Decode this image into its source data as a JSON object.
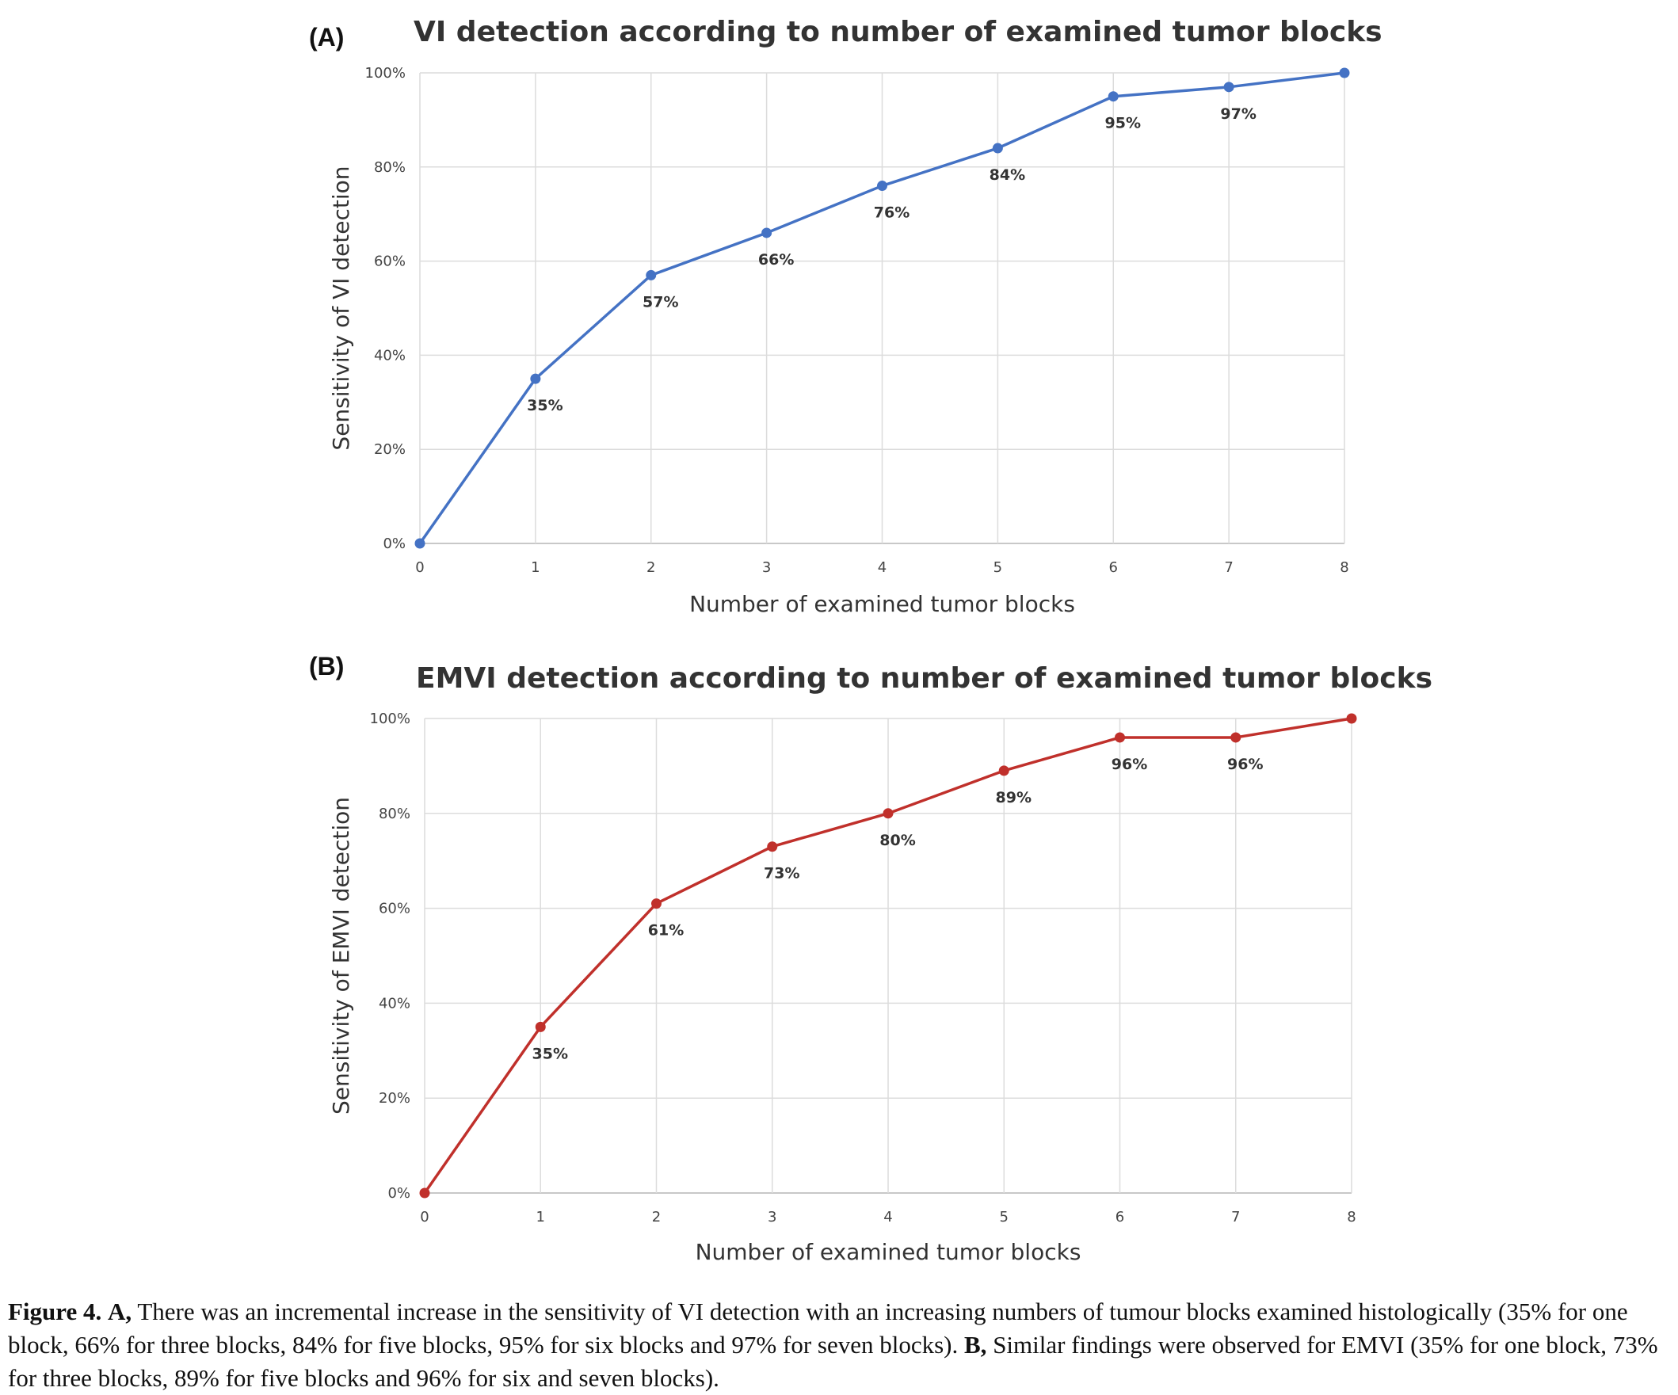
{
  "chart_data": [
    {
      "type": "line",
      "panel": "(A)",
      "title": "VI detection according to number of examined tumor blocks",
      "xlabel": "Number of examined tumor blocks",
      "ylabel": "Sensitivity of VI detection",
      "x": [
        0,
        1,
        2,
        3,
        4,
        5,
        6,
        7,
        8
      ],
      "y_ticks": [
        "0%",
        "20%",
        "40%",
        "60%",
        "80%",
        "100%"
      ],
      "ylim": [
        0,
        100
      ],
      "series": [
        {
          "values": [
            0,
            35,
            57,
            66,
            76,
            84,
            95,
            97,
            100
          ],
          "data_labels": [
            "",
            "35%",
            "57%",
            "66%",
            "76%",
            "84%",
            "95%",
            "97%",
            ""
          ]
        }
      ],
      "color": "#4472C4",
      "grid": true
    },
    {
      "type": "line",
      "panel": "(B)",
      "title": "EMVI detection according to number of examined tumor blocks",
      "xlabel": "Number of examined tumor blocks",
      "ylabel": "Sensitivity of EMVI detection",
      "x": [
        0,
        1,
        2,
        3,
        4,
        5,
        6,
        7,
        8
      ],
      "y_ticks": [
        "0%",
        "20%",
        "40%",
        "60%",
        "80%",
        "100%"
      ],
      "ylim": [
        0,
        100
      ],
      "series": [
        {
          "values": [
            0,
            35,
            61,
            73,
            80,
            89,
            96,
            96,
            100
          ],
          "data_labels": [
            "",
            "35%",
            "61%",
            "73%",
            "80%",
            "89%",
            "96%",
            "96%",
            ""
          ]
        }
      ],
      "color": "#C0302B",
      "grid": true
    }
  ],
  "caption": {
    "figure_label": "Figure 4.",
    "part_a_label": "A,",
    "part_a_text": "There was an incremental increase in the sensitivity of VI detection with an increasing numbers of tumour blocks examined histologically (35% for one block, 66% for three blocks, 84% for five blocks, 95% for six blocks and 97% for seven blocks).",
    "part_b_label": "B,",
    "part_b_text": "Similar findings were observed for EMVI (35% for one block, 73% for three blocks, 89% for five blocks and 96% for six and seven blocks)."
  }
}
